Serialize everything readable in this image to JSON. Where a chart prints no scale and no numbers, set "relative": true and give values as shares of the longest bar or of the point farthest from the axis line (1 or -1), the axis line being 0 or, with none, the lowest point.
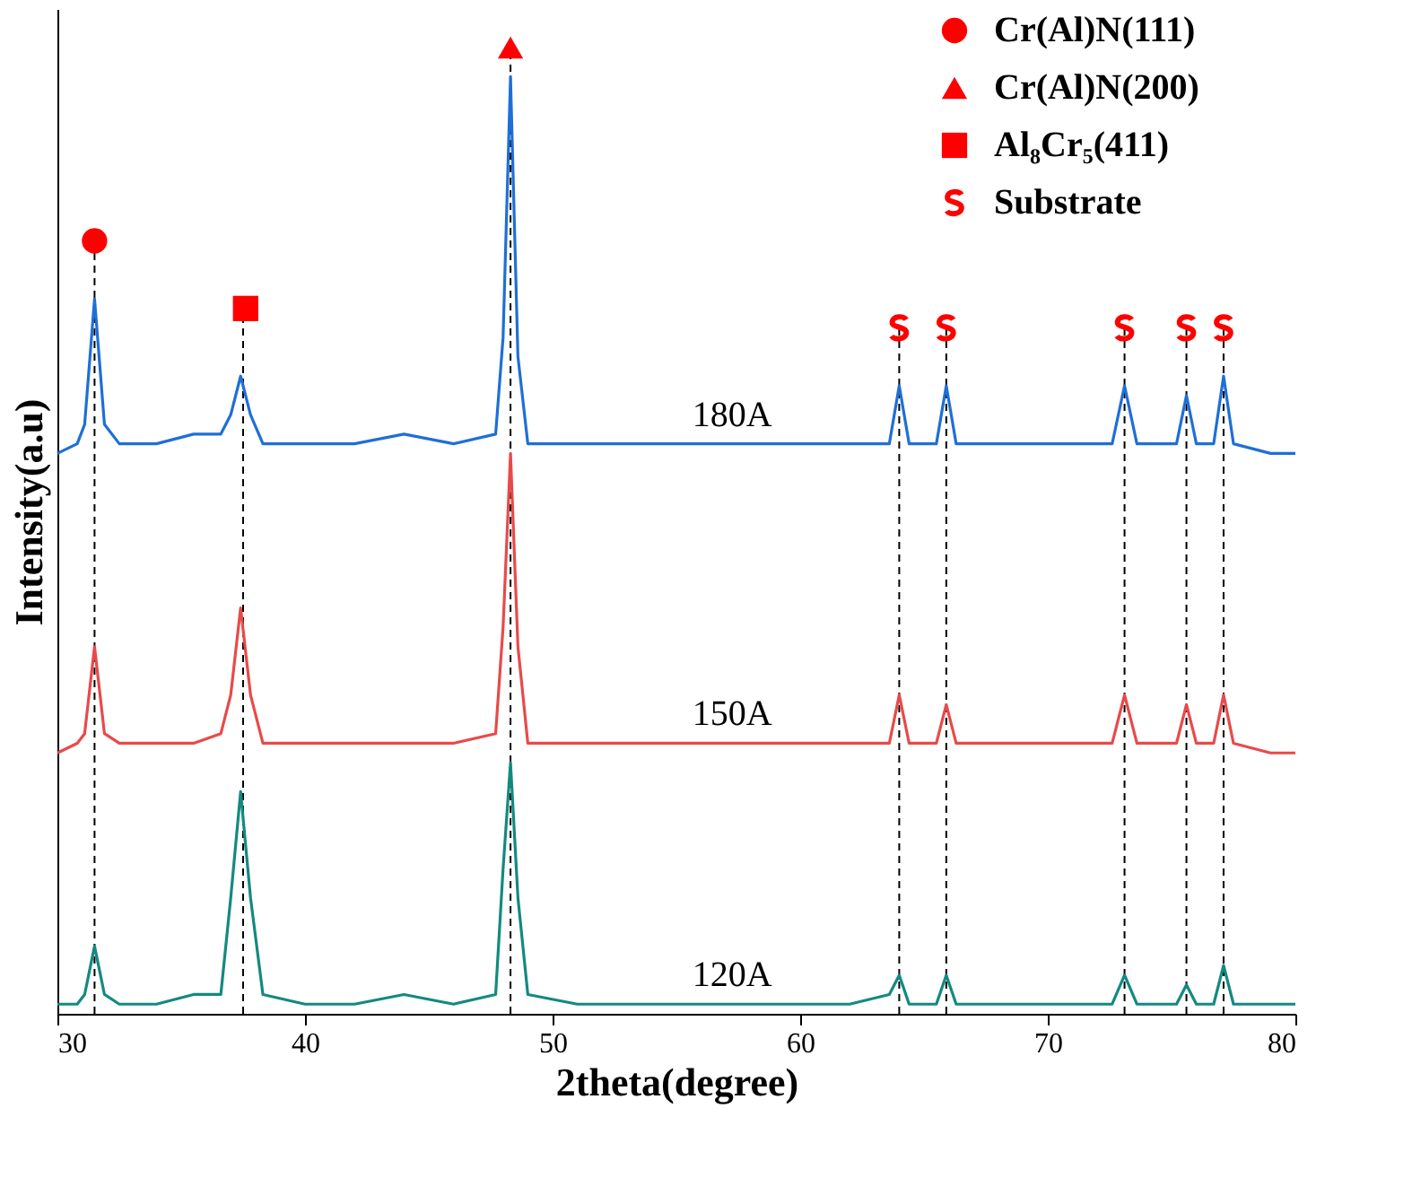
{
  "chart_data": {
    "type": "line",
    "relative": true,
    "xlabel": "2theta(degree)",
    "ylabel": "Intensity(a.u)",
    "xlim": [
      30,
      80
    ],
    "xticks": [
      30,
      40,
      50,
      60,
      70,
      80
    ],
    "tick_labels": "x",
    "legend": "top right",
    "line_style": "solid",
    "x": [
      30,
      30.8,
      31.1,
      31.5,
      31.9,
      32.5,
      34,
      35.5,
      36.6,
      37.0,
      37.4,
      37.8,
      38.3,
      40,
      42,
      44,
      46,
      47.7,
      48.0,
      48.3,
      48.6,
      49,
      51,
      54,
      57,
      60,
      62,
      63.6,
      64.0,
      64.4,
      65.5,
      65.9,
      66.3,
      68,
      70,
      72.6,
      73.1,
      73.6,
      75.2,
      75.6,
      76.0,
      76.7,
      77.1,
      77.5,
      79,
      80
    ],
    "series": [
      {
        "name": "180A",
        "color": "#1f6fd6",
        "values": [
          0.58,
          0.59,
          0.61,
          0.74,
          0.61,
          0.59,
          0.59,
          0.6,
          0.6,
          0.62,
          0.66,
          0.62,
          0.59,
          0.59,
          0.59,
          0.6,
          0.59,
          0.6,
          0.7,
          0.97,
          0.68,
          0.59,
          0.59,
          0.59,
          0.59,
          0.59,
          0.59,
          0.59,
          0.65,
          0.59,
          0.59,
          0.65,
          0.59,
          0.59,
          0.59,
          0.59,
          0.65,
          0.59,
          0.59,
          0.64,
          0.59,
          0.59,
          0.66,
          0.59,
          0.58,
          0.58
        ]
      },
      {
        "name": "150A",
        "color": "#e84a4a",
        "values": [
          0.27,
          0.28,
          0.29,
          0.38,
          0.29,
          0.28,
          0.28,
          0.28,
          0.29,
          0.33,
          0.42,
          0.33,
          0.28,
          0.28,
          0.28,
          0.28,
          0.28,
          0.29,
          0.4,
          0.58,
          0.38,
          0.28,
          0.28,
          0.28,
          0.28,
          0.28,
          0.28,
          0.28,
          0.33,
          0.28,
          0.28,
          0.32,
          0.28,
          0.28,
          0.28,
          0.28,
          0.33,
          0.28,
          0.28,
          0.32,
          0.28,
          0.28,
          0.33,
          0.28,
          0.27,
          0.27
        ]
      },
      {
        "name": "120A",
        "color": "#138a80",
        "values": [
          0.01,
          0.01,
          0.02,
          0.07,
          0.02,
          0.01,
          0.01,
          0.02,
          0.02,
          0.12,
          0.23,
          0.12,
          0.02,
          0.01,
          0.01,
          0.02,
          0.01,
          0.02,
          0.15,
          0.26,
          0.12,
          0.02,
          0.01,
          0.01,
          0.01,
          0.01,
          0.01,
          0.02,
          0.04,
          0.01,
          0.01,
          0.04,
          0.01,
          0.01,
          0.01,
          0.01,
          0.04,
          0.01,
          0.01,
          0.03,
          0.01,
          0.01,
          0.05,
          0.01,
          0.01,
          0.01
        ]
      },
      {
        "type": "scatter",
        "name": "Cr(Al)N(111)",
        "color": "#ff0000",
        "marker": "circle",
        "x": [
          31.5
        ],
        "values": [
          0.8
        ]
      },
      {
        "type": "scatter",
        "name": "Cr(Al)N(200)",
        "color": "#ff0000",
        "marker": "triangle",
        "x": [
          48.3
        ],
        "values": [
          1.0
        ]
      },
      {
        "type": "scatter",
        "name": "Al₈Cr₅(411)",
        "color": "#ff0000",
        "marker": "square",
        "x": [
          37.6
        ],
        "values": [
          0.73
        ]
      },
      {
        "type": "scatter",
        "name": "Substrate",
        "color": "#ff0000",
        "x": [
          64.0,
          65.9,
          73.1,
          75.6,
          77.1
        ],
        "values": [
          0.71,
          0.71,
          0.71,
          0.71,
          0.71
        ]
      }
    ],
    "ref_lines": [
      {
        "axis": "x",
        "value": 31.5,
        "color": "#000000",
        "line_style": "dashed"
      },
      {
        "axis": "x",
        "value": 37.5,
        "color": "#000000",
        "line_style": "dashed"
      },
      {
        "axis": "x",
        "value": 48.3,
        "color": "#000000",
        "line_style": "dashed"
      },
      {
        "axis": "x",
        "value": 64.0,
        "color": "#000000",
        "line_style": "dashed"
      },
      {
        "axis": "x",
        "value": 65.9,
        "color": "#000000",
        "line_style": "dashed"
      },
      {
        "axis": "x",
        "value": 73.1,
        "color": "#000000",
        "line_style": "dashed"
      },
      {
        "axis": "x",
        "value": 75.6,
        "color": "#000000",
        "line_style": "dashed"
      },
      {
        "axis": "x",
        "value": 77.1,
        "color": "#000000",
        "line_style": "dashed"
      }
    ]
  }
}
